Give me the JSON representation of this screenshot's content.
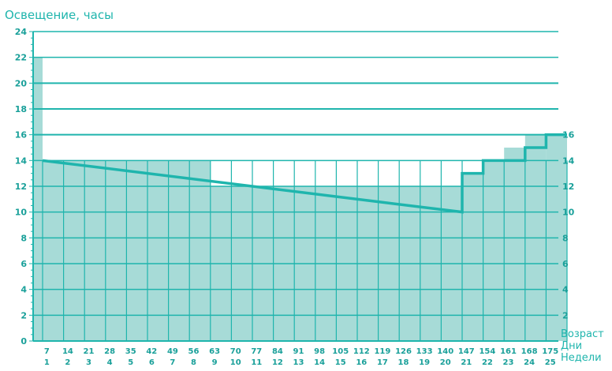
{
  "chart_data": {
    "type": "line",
    "title": "",
    "ylabel": "Освещение, часы",
    "xlabel": {
      "title": "Возраст",
      "row1": "Дни",
      "row2": "Недели"
    },
    "ylim": [
      0,
      24
    ],
    "y_ticks": [
      0,
      2,
      4,
      6,
      8,
      10,
      12,
      14,
      16,
      18,
      20,
      22,
      24
    ],
    "right_y_ticks": [
      2,
      4,
      6,
      8,
      10,
      12,
      14,
      16
    ],
    "x_categories_days": [
      "7",
      "14",
      "21",
      "28",
      "35",
      "42",
      "49",
      "56",
      "63",
      "70",
      "77",
      "84",
      "91",
      "98",
      "105",
      "112",
      "119",
      "126",
      "133",
      "140",
      "147",
      "154",
      "161",
      "168",
      "175"
    ],
    "x_categories_weeks": [
      "1",
      "2",
      "3",
      "4",
      "5",
      "6",
      "7",
      "8",
      "9",
      "10",
      "11",
      "12",
      "13",
      "14",
      "15",
      "16",
      "17",
      "18",
      "19",
      "20",
      "21",
      "22",
      "23",
      "24",
      "25"
    ],
    "series": [
      {
        "points": [
          [
            0,
            14
          ],
          [
            140,
            10
          ],
          [
            140,
            13
          ],
          [
            147,
            13
          ],
          [
            147,
            14
          ],
          [
            161,
            14
          ],
          [
            161,
            15
          ],
          [
            168,
            15
          ],
          [
            168,
            16
          ],
          [
            175,
            16
          ]
        ]
      }
    ],
    "fill_steps_hours": [
      22,
      14,
      14,
      14,
      14,
      14,
      14,
      14,
      14,
      12,
      12,
      12,
      12,
      12,
      12,
      12,
      12,
      12,
      12,
      12,
      12,
      13,
      14,
      15,
      16,
      16
    ],
    "reference_lines": [
      16,
      18,
      20
    ],
    "colors": {
      "line": "#1fb5ad",
      "fill": "#a7dbd7",
      "grid": "#1fb5ad",
      "text": "#1fb5ad",
      "tick_text": "#1aa09a"
    }
  }
}
